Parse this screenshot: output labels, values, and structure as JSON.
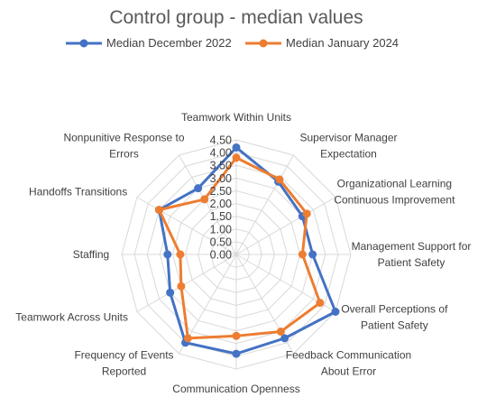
{
  "chart_data": {
    "type": "radar",
    "title": "Control group - median values",
    "categories": [
      "Teamwork Within Units",
      "Supervisor Manager Expectation",
      "Organizational Learning Continuous Improvement",
      "Management Support for Patient Safety",
      "Overall Perceptions of Patient Safety",
      "Feedback Communication About Error",
      "Communication Openness",
      "Frequency of Events Reported",
      "Teamwork Across Units",
      "Staffing",
      "Handoffs Transitions",
      "Nonpunitive Response to Errors"
    ],
    "category_lines": [
      [
        "Teamwork Within Units"
      ],
      [
        "Supervisor Manager",
        "Expectation"
      ],
      [
        "Organizational Learning",
        "Continuous Improvement"
      ],
      [
        "Management Support for",
        "Patient Safety"
      ],
      [
        "Overall Perceptions of",
        "Patient Safety"
      ],
      [
        "Feedback Communication",
        "About Error"
      ],
      [
        "Communication Openness"
      ],
      [
        "Frequency of Events",
        "Reported"
      ],
      [
        "Teamwork Across Units"
      ],
      [
        "Staffing"
      ],
      [
        "Handoffs Transitions"
      ],
      [
        "Nonpunitive Response to",
        "Errors"
      ]
    ],
    "series": [
      {
        "name": "Median December 2022",
        "color": "#4472C4",
        "values": [
          4.2,
          3.3,
          3.0,
          3.0,
          4.5,
          3.8,
          3.9,
          4.0,
          3.0,
          2.7,
          3.5,
          3.0
        ]
      },
      {
        "name": "Median January 2024",
        "color": "#ED7D31",
        "values": [
          3.8,
          3.4,
          3.2,
          2.6,
          3.8,
          3.5,
          3.2,
          3.8,
          2.5,
          2.2,
          3.5,
          2.5
        ]
      }
    ],
    "rlim": [
      0,
      4.5
    ],
    "rticks": [
      "0.00",
      "0.50",
      "1.00",
      "1.50",
      "2.00",
      "2.50",
      "3.00",
      "3.50",
      "4.00",
      "4.50"
    ],
    "legend_position": "top"
  }
}
